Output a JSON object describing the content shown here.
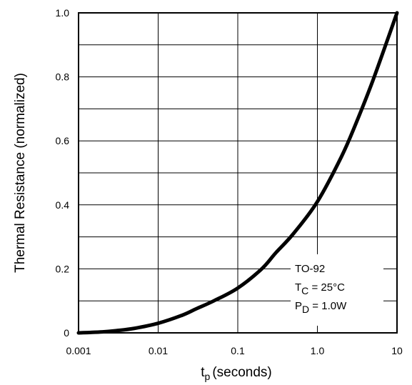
{
  "chart_data": {
    "type": "line",
    "xlabel": {
      "main": "t",
      "sub": "p",
      "rest": "(seconds)"
    },
    "ylabel": "Thermal Resistance (normalized)",
    "x_scale": "log",
    "xlim": [
      0.001,
      10
    ],
    "ylim": [
      0,
      1.0
    ],
    "x_ticks": [
      0.001,
      0.01,
      0.1,
      1.0,
      10
    ],
    "x_tick_labels": [
      "0.001",
      "0.01",
      "0.1",
      "1.0",
      "10"
    ],
    "y_ticks": [
      0,
      0.2,
      0.4,
      0.6,
      0.8,
      1.0
    ],
    "y_tick_labels": [
      "0",
      "0.2",
      "0.4",
      "0.6",
      "0.8",
      "1.0"
    ],
    "grid": true,
    "series": [
      {
        "x": [
          0.001,
          0.002,
          0.003,
          0.005,
          0.01,
          0.02,
          0.03,
          0.05,
          0.1,
          0.2,
          0.3,
          0.5,
          1.0,
          2.0,
          3.0,
          5.0,
          10
        ],
        "y": [
          0.0,
          0.003,
          0.007,
          0.014,
          0.03,
          0.055,
          0.075,
          0.1,
          0.14,
          0.2,
          0.25,
          0.31,
          0.41,
          0.55,
          0.65,
          0.79,
          1.0
        ]
      }
    ],
    "annotation": {
      "line1": "TO-92",
      "line2": {
        "main": "T",
        "sub": "C",
        "rest": " = 25°C"
      },
      "line3": {
        "main": "P",
        "sub": "D",
        "rest": " = 1.0W"
      }
    },
    "colors": {
      "line": "#000000",
      "grid": "#000000",
      "background": "#ffffff"
    }
  }
}
